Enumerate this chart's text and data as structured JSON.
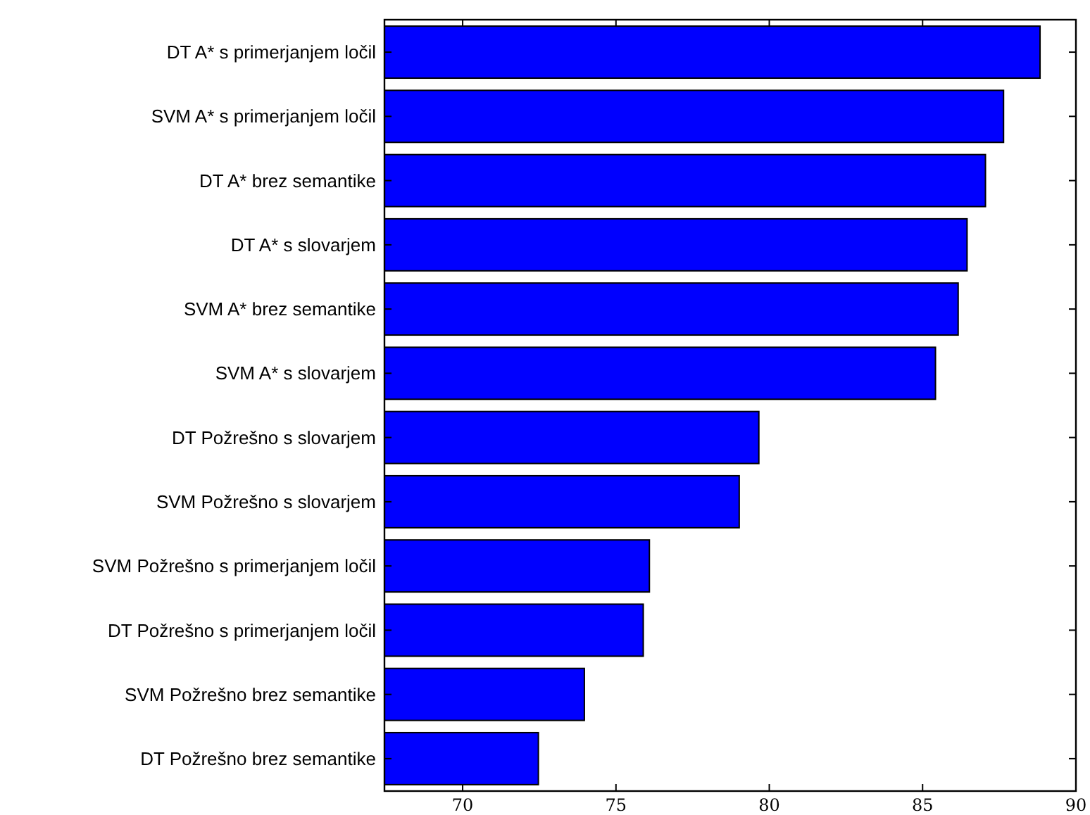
{
  "chart_data": {
    "type": "bar",
    "orientation": "horizontal",
    "categories": [
      "DT A* s primerjanjem ločil",
      "SVM A* s primerjanjem ločil",
      "DT A* brez semantike",
      "DT A* s slovarjem",
      "SVM A* brez semantike",
      "SVM A* s slovarjem",
      "DT Požrešno s slovarjem",
      "SVM Požrešno s slovarjem",
      "SVM Požrešno s primerjanjem ločil",
      "DT Požrešno s primerjanjem ločil",
      "SVM Požrešno brez semantike",
      "DT Požrešno brez semantike"
    ],
    "values": [
      88.83,
      87.64,
      87.05,
      86.45,
      86.16,
      85.42,
      79.66,
      79.02,
      76.09,
      75.89,
      73.97,
      72.47
    ],
    "color": "#0000ff",
    "xlim": [
      67.45,
      90
    ],
    "xticks": [
      70,
      75,
      80,
      85,
      90
    ],
    "grid": false
  }
}
